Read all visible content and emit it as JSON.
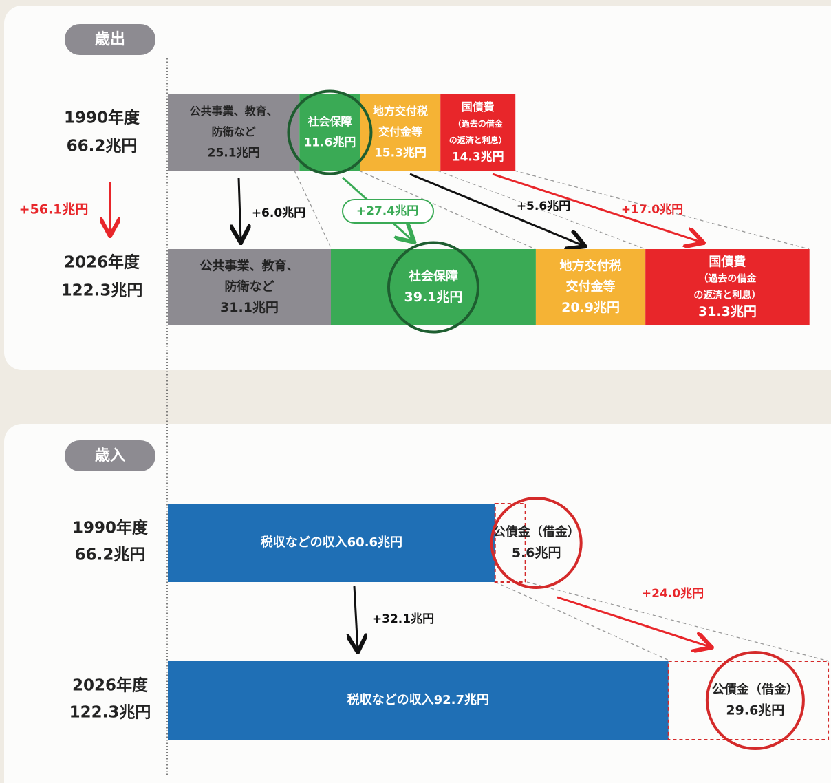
{
  "expenditure": {
    "title": "歳出",
    "total_change": "+56.1兆円",
    "rows": [
      {
        "year": "1990年度",
        "total": "66.2兆円",
        "segments": [
          {
            "name": [
              "公共事業、教育、",
              "防衛など"
            ],
            "value": 25.1,
            "value_label": "25.1兆円",
            "color": "#8d8b91"
          },
          {
            "name": [
              "社会保障"
            ],
            "value": 11.6,
            "value_label": "11.6兆円",
            "color": "#3aaa55"
          },
          {
            "name": [
              "地方交付税",
              "交付金等"
            ],
            "value": 15.3,
            "value_label": "15.3兆円",
            "color": "#f5b335"
          },
          {
            "name": [
              "国債費",
              "（過去の借金",
              "の返済と利息）"
            ],
            "value": 14.3,
            "value_label": "14.3兆円",
            "color": "#e8262a"
          }
        ]
      },
      {
        "year": "2026年度",
        "total": "122.3兆円",
        "segments": [
          {
            "name": [
              "公共事業、教育、",
              "防衛など"
            ],
            "value": 31.1,
            "value_label": "31.1兆円",
            "color": "#8d8b91"
          },
          {
            "name": [
              "社会保障"
            ],
            "value": 39.1,
            "value_label": "39.1兆円",
            "color": "#3aaa55"
          },
          {
            "name": [
              "地方交付税",
              "交付金等"
            ],
            "value": 20.9,
            "value_label": "20.9兆円",
            "color": "#f5b335"
          },
          {
            "name": [
              "国債費",
              "（過去の借金",
              "の返済と利息）"
            ],
            "value": 31.3,
            "value_label": "31.3兆円",
            "color": "#e8262a"
          }
        ]
      }
    ],
    "changes": [
      "+6.0兆円",
      "+27.4兆円",
      "+5.6兆円",
      "+17.0兆円"
    ]
  },
  "revenue": {
    "title": "歳入",
    "rows": [
      {
        "year": "1990年度",
        "total": "66.2兆円",
        "segments": [
          {
            "name": [
              "税収などの収入60.6兆円"
            ],
            "value": 60.6,
            "color": "#1f6fb5"
          },
          {
            "name": [
              "公債金（借金）"
            ],
            "value": 5.6,
            "value_label": "5.6兆円",
            "color": "#d42a2a"
          }
        ]
      },
      {
        "year": "2026年度",
        "total": "122.3兆円",
        "segments": [
          {
            "name": [
              "税収などの収入92.7兆円"
            ],
            "value": 92.7,
            "color": "#1f6fb5"
          },
          {
            "name": [
              "公債金（借金）"
            ],
            "value": 29.6,
            "value_label": "29.6兆円",
            "color": "#d42a2a"
          }
        ]
      }
    ],
    "changes": [
      "+32.1兆円",
      "+24.0兆円"
    ]
  }
}
